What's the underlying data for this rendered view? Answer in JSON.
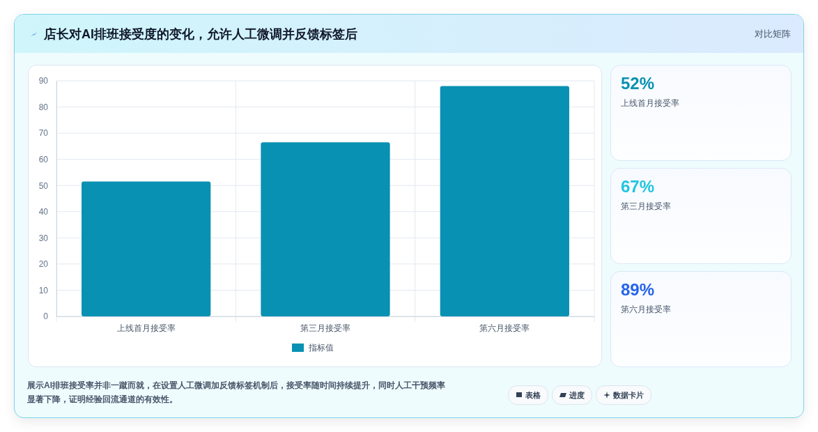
{
  "chart_data": {
    "type": "bar",
    "title": "店长对AI排班接受度的变化，允许人工微调并反馈标签后",
    "categories": [
      "上线首月接受率",
      "第三月接受率",
      "第六月接受率"
    ],
    "series": [
      {
        "name": "指标值",
        "color": "#0891b2",
        "values": [
          51.5,
          66.5,
          88
        ]
      }
    ],
    "ylim": [
      0,
      90
    ],
    "yticks": [
      0,
      10,
      20,
      30,
      40,
      50,
      60,
      70,
      80,
      90
    ],
    "grid": true,
    "legend": "bottom",
    "annotations": [
      "对比矩阵",
      "52%",
      "上线首月接受率",
      "67%",
      "第三月接受率",
      "89%",
      "第六月接受率",
      "展示AI排班接受率并非一蹴而就，在设置人工微调加反馈标签机制后，接受率随时间持续提升，同时人工干预频率显著下降，证明经验回流通道的有效性。",
      "表格",
      "进度",
      "数据卡片"
    ]
  }
}
